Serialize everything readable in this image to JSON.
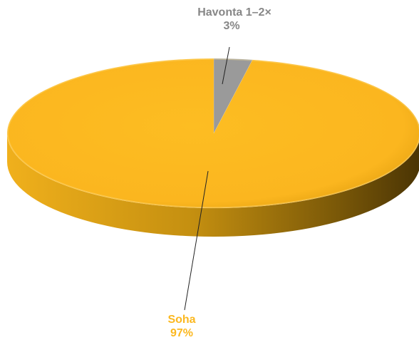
{
  "chart_data": {
    "type": "pie",
    "title": "",
    "slices": [
      {
        "label": "Havonta 1–2×",
        "value": 3,
        "value_label": "3%",
        "color": "#9a9a9a"
      },
      {
        "label": "Soha",
        "value": 97,
        "value_label": "97%",
        "color": "#fbb820"
      }
    ],
    "style": "3d",
    "legend": "none",
    "label_colors": {
      "Havonta 1–2×": "#878787",
      "Soha": "#fbb820"
    }
  }
}
